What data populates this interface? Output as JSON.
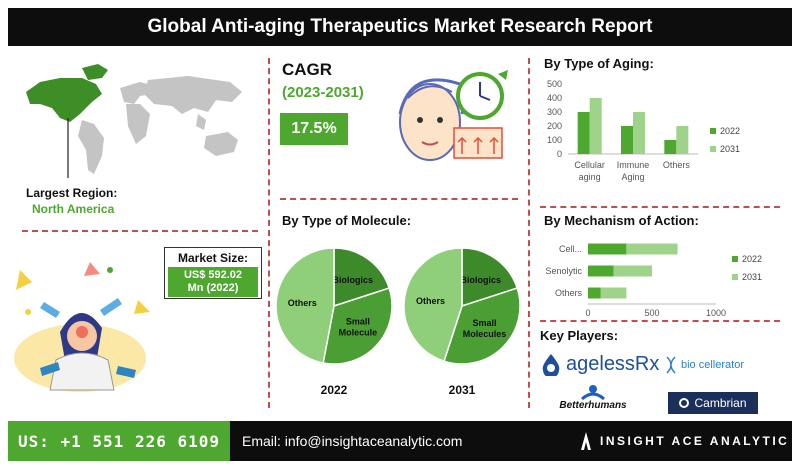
{
  "header": {
    "title": "Global Anti-aging Therapeutics Market Research Report"
  },
  "region": {
    "label": "Largest Region:",
    "value": "North America"
  },
  "market_size": {
    "label": "Market Size:",
    "value_line1": "US$ 592.02",
    "value_line2": "Mn (2022)"
  },
  "cagr": {
    "title": "CAGR",
    "years": "(2023-2031)",
    "value": "17.5%"
  },
  "molecule": {
    "title": "By Type of Molecule:"
  },
  "aging": {
    "title": "By Type of Aging:"
  },
  "mechanism": {
    "title": "By Mechanism of Action:"
  },
  "players": {
    "title": "Key Players:",
    "items": [
      "agelessRx",
      "bio cellerator",
      "Betterhumans",
      "Cambrian"
    ]
  },
  "footer": {
    "phone": "US: +1 551 226 6109",
    "email": "Email: info@insightaceanalytic.com",
    "brand": "INSIGHT ACE ANALYTIC"
  },
  "colors": {
    "dark_green": "#4ea72e",
    "light_green": "#9fd38a",
    "pie_dark": "#4a9e34",
    "pie_light": "#8fcf7a",
    "header": "#0d0d0d",
    "divider": "#c0504d"
  },
  "chart_data": [
    {
      "type": "bar",
      "title": "By Type of Aging:",
      "categories": [
        "Cellular aging",
        "Immune Aging",
        "Others"
      ],
      "series": [
        {
          "name": "2022",
          "values": [
            300,
            200,
            100
          ]
        },
        {
          "name": "2031",
          "values": [
            400,
            300,
            200
          ]
        }
      ],
      "ylim": [
        0,
        500
      ],
      "yticks": [
        0,
        100,
        200,
        300,
        400,
        500
      ],
      "legend": "right"
    },
    {
      "type": "bar",
      "orientation": "horizontal",
      "stacked": true,
      "title": "By Mechanism of Action:",
      "categories": [
        "Cell...",
        "Senolytic",
        "Others"
      ],
      "series": [
        {
          "name": "2022",
          "values": [
            300,
            200,
            100
          ]
        },
        {
          "name": "2031",
          "values": [
            400,
            300,
            200
          ]
        }
      ],
      "xlim": [
        0,
        1000
      ],
      "xticks": [
        0,
        500,
        1000
      ],
      "legend": "right"
    },
    {
      "type": "pie",
      "title": "2022",
      "labels": [
        "Biologics",
        "Small Molecule",
        "Others"
      ],
      "values": [
        20,
        33,
        47
      ]
    },
    {
      "type": "pie",
      "title": "2031",
      "labels": [
        "Biologics",
        "Small Molecules",
        "Others"
      ],
      "values": [
        20,
        35,
        45
      ]
    }
  ]
}
